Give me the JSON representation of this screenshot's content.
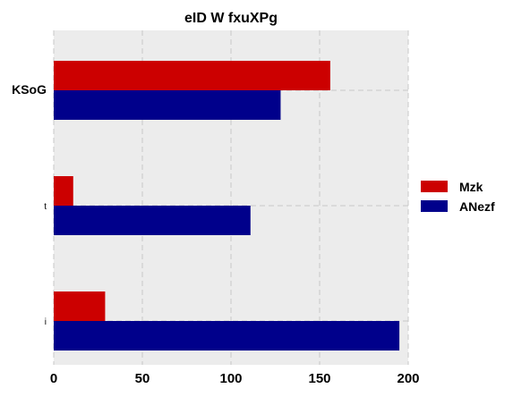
{
  "chart_data": {
    "type": "bar",
    "orientation": "horizontal",
    "title": "eID W fxuXPg",
    "categories": [
      "KSoG",
      "t",
      "i"
    ],
    "series": [
      {
        "name": "Mzk",
        "color": "#cc0000",
        "values": [
          156,
          11,
          29
        ]
      },
      {
        "name": "ANezf",
        "color": "#00008b",
        "values": [
          128,
          111,
          195
        ]
      }
    ],
    "xlim": [
      0,
      200
    ],
    "xticks": [
      0,
      50,
      100,
      150,
      200
    ],
    "grid": true,
    "legend_position": "right"
  }
}
